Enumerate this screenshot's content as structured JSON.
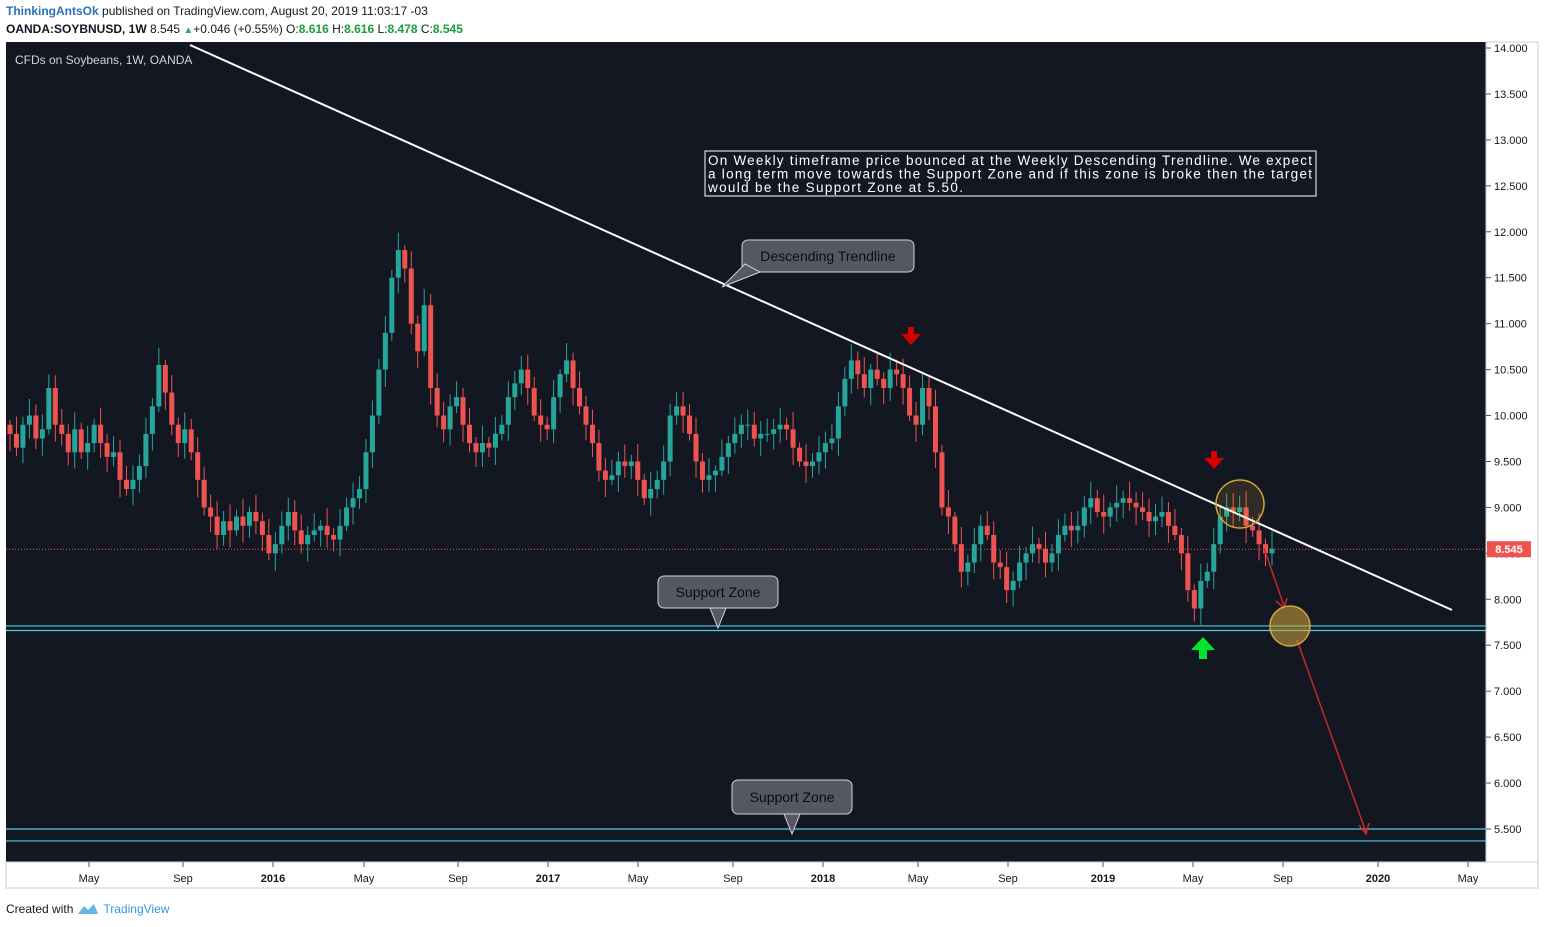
{
  "header": {
    "publisher": "ThinkingAntsOk",
    "published_text": "published on TradingView.com, August 20, 2019 11:03:17 -03",
    "symbol": "OANDA:SOYBNUSD, 1W",
    "last_price": "8.545",
    "change": "+0.046 (+0.55%)",
    "open_label": "O:",
    "open": "8.616",
    "high_label": "H:",
    "high": "8.616",
    "low_label": "L:",
    "low": "8.478",
    "close_label": "C:",
    "close": "8.545"
  },
  "footer": {
    "created_with": "Created with",
    "brand": "TradingView"
  },
  "colors": {
    "background": "#131722",
    "up": "#26a69a",
    "down": "#ef5350",
    "trendline": "#ffffff",
    "support": "#4dd0e1",
    "price_line": "#ef5350",
    "projection": "#c62828",
    "highlight_circle": "#d4a53a"
  },
  "chart_data": {
    "type": "candlestick",
    "title": "CFDs on Soybeans, 1W, OANDA",
    "ylim": [
      5.1,
      14.0
    ],
    "y_ticks": [
      "14.000",
      "13.500",
      "13.000",
      "12.500",
      "12.000",
      "11.500",
      "11.000",
      "10.500",
      "10.000",
      "9.500",
      "9.000",
      "8.500",
      "8.000",
      "7.500",
      "7.000",
      "6.500",
      "6.000",
      "5.500"
    ],
    "x_ticks": [
      "May",
      "Sep",
      "2016",
      "May",
      "Sep",
      "2017",
      "May",
      "Sep",
      "2018",
      "May",
      "Sep",
      "2019",
      "May",
      "Sep",
      "2020",
      "May"
    ],
    "current_price": 8.545,
    "current_price_label": "8.545",
    "closes": [
      9.8,
      9.65,
      9.9,
      10.0,
      9.75,
      9.85,
      10.3,
      9.9,
      9.8,
      9.6,
      9.85,
      9.6,
      9.7,
      9.9,
      9.7,
      9.55,
      9.6,
      9.3,
      9.2,
      9.3,
      9.45,
      9.8,
      10.1,
      10.55,
      10.25,
      9.9,
      9.7,
      9.85,
      9.6,
      9.3,
      9.0,
      8.9,
      8.7,
      8.85,
      8.75,
      8.9,
      8.8,
      8.95,
      8.85,
      8.7,
      8.5,
      8.6,
      8.8,
      8.95,
      8.75,
      8.6,
      8.7,
      8.75,
      8.8,
      8.7,
      8.65,
      8.8,
      9.0,
      9.1,
      9.2,
      9.6,
      10.0,
      10.5,
      10.9,
      11.5,
      11.8,
      11.6,
      11.0,
      10.7,
      11.2,
      10.3,
      10.0,
      9.85,
      10.1,
      10.2,
      9.9,
      9.7,
      9.6,
      9.7,
      9.65,
      9.8,
      9.9,
      10.2,
      10.35,
      10.5,
      10.3,
      10.0,
      9.9,
      9.85,
      10.2,
      10.45,
      10.6,
      10.3,
      10.1,
      9.9,
      9.7,
      9.4,
      9.3,
      9.35,
      9.5,
      9.45,
      9.5,
      9.3,
      9.1,
      9.2,
      9.3,
      9.5,
      10.0,
      10.1,
      10.0,
      9.8,
      9.5,
      9.3,
      9.35,
      9.4,
      9.55,
      9.7,
      9.8,
      9.9,
      9.9,
      9.75,
      9.8,
      9.8,
      9.85,
      9.9,
      9.85,
      9.65,
      9.5,
      9.45,
      9.5,
      9.6,
      9.7,
      9.75,
      10.1,
      10.4,
      10.6,
      10.45,
      10.3,
      10.5,
      10.4,
      10.3,
      10.5,
      10.45,
      10.3,
      10.0,
      9.9,
      10.3,
      10.1,
      9.6,
      9.0,
      8.9,
      8.6,
      8.3,
      8.4,
      8.6,
      8.8,
      8.7,
      8.4,
      8.35,
      8.1,
      8.2,
      8.4,
      8.5,
      8.6,
      8.55,
      8.4,
      8.5,
      8.7,
      8.8,
      8.75,
      8.8,
      9.0,
      9.1,
      8.95,
      8.9,
      9.0,
      9.05,
      9.1,
      9.05,
      9.0,
      8.95,
      8.85,
      8.9,
      8.95,
      8.8,
      8.7,
      8.5,
      8.1,
      7.9,
      8.2,
      8.3,
      8.6,
      8.9,
      9.0,
      8.95,
      9.0,
      8.8,
      8.75,
      8.6,
      8.5,
      8.55
    ],
    "annotations": {
      "note": "On Weekly timeframe price bounced at the Weekly Descending Trendline. We expect a long term move towards the Support Zone and if this zone is broke then the target would be the Support Zone at 5.50.",
      "trendline_label": "Descending Trendline",
      "support_label_1": "Support Zone",
      "support_label_2": "Support Zone",
      "support_zone_1": [
        7.66,
        7.71
      ],
      "support_zone_2": [
        5.37,
        5.5
      ]
    }
  }
}
